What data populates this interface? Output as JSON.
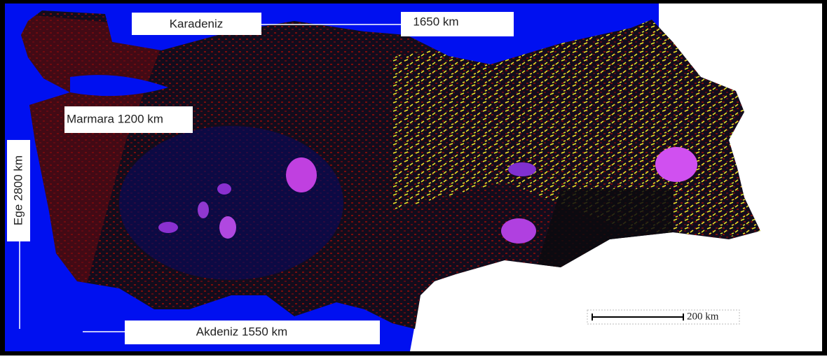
{
  "labels": [
    "Karadeniz",
    "1650 km",
    "Marmara 1200 km",
    "Ege 2800 km",
    "Akdeniz 1550 km"
  ],
  "scale_bar": "200 km"
}
